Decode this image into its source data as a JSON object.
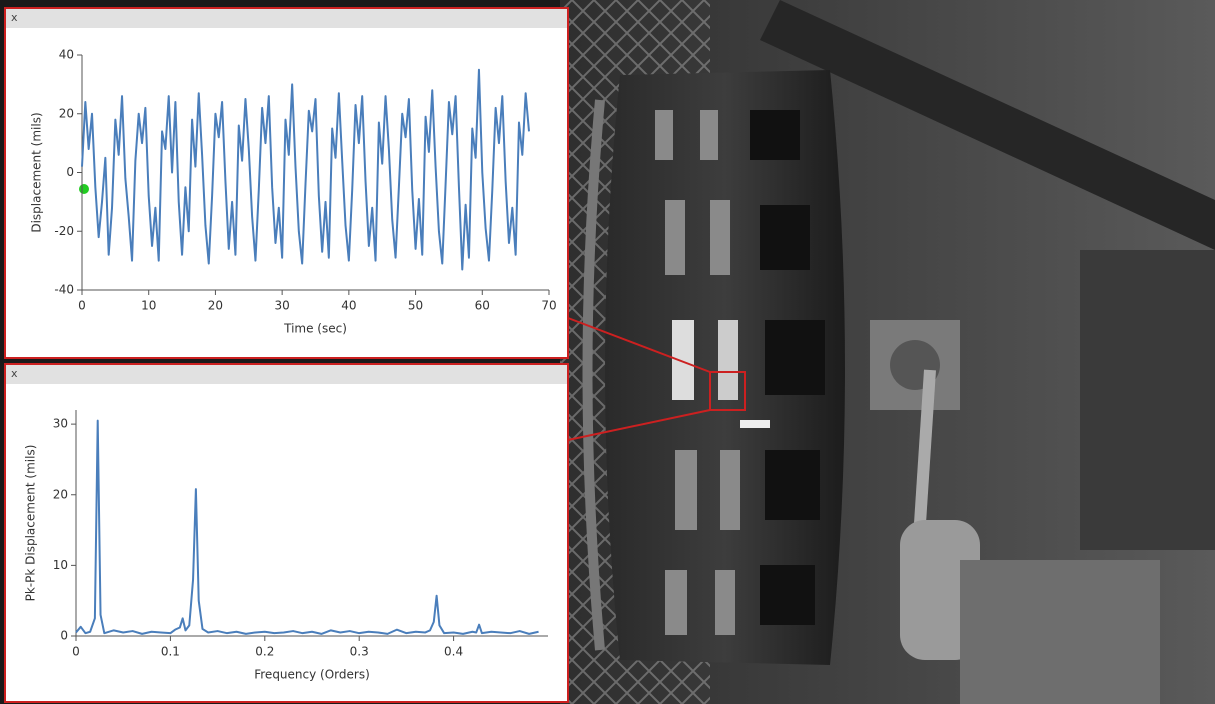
{
  "panels": [
    {
      "close": "x"
    },
    {
      "close": "x"
    }
  ],
  "chart_data": [
    {
      "type": "line",
      "xlabel": "Time (sec)",
      "ylabel": "Displacement (mils)",
      "color": "#4a7ebb",
      "x": [
        0,
        0.5,
        1,
        1.5,
        2,
        2.5,
        3,
        3.5,
        4,
        4.5,
        5,
        5.5,
        6,
        6.5,
        7,
        7.5,
        8,
        8.5,
        9,
        9.5,
        10,
        10.5,
        11,
        11.5,
        12,
        12.5,
        13,
        13.5,
        14,
        14.5,
        15,
        15.5,
        16,
        16.5,
        17,
        17.5,
        18,
        18.5,
        19,
        19.5,
        20,
        20.5,
        21,
        21.5,
        22,
        22.5,
        23,
        23.5,
        24,
        24.5,
        25,
        25.5,
        26,
        26.5,
        27,
        27.5,
        28,
        28.5,
        29,
        29.5,
        30,
        30.5,
        31,
        31.5,
        32,
        32.5,
        33,
        33.5,
        34,
        34.5,
        35,
        35.5,
        36,
        36.5,
        37,
        37.5,
        38,
        38.5,
        39,
        39.5,
        40,
        40.5,
        41,
        41.5,
        42,
        42.5,
        43,
        43.5,
        44,
        44.5,
        45,
        45.5,
        46,
        46.5,
        47,
        47.5,
        48,
        48.5,
        49,
        49.5,
        50,
        50.5,
        51,
        51.5,
        52,
        52.5,
        53,
        53.5,
        54,
        54.5,
        55,
        55.5,
        56,
        56.5,
        57,
        57.5,
        58,
        58.5,
        59,
        59.5,
        60,
        60.5,
        61,
        61.5,
        62,
        62.5,
        63,
        63.5,
        64,
        64.5,
        65,
        65.5,
        66,
        66.5,
        67
      ],
      "values": [
        2,
        24,
        8,
        20,
        -5,
        -22,
        -10,
        5,
        -28,
        -12,
        18,
        6,
        26,
        -2,
        -15,
        -30,
        4,
        20,
        10,
        22,
        -8,
        -25,
        -12,
        -30,
        14,
        8,
        26,
        0,
        24,
        -10,
        -28,
        -5,
        -20,
        18,
        2,
        27,
        6,
        -18,
        -31,
        -8,
        20,
        12,
        24,
        -3,
        -26,
        -10,
        -28,
        16,
        4,
        25,
        8,
        -15,
        -30,
        -6,
        22,
        10,
        26,
        -5,
        -24,
        -12,
        -29,
        18,
        6,
        30,
        2,
        -20,
        -31,
        -4,
        21,
        14,
        25,
        -8,
        -27,
        -10,
        -29,
        15,
        5,
        27,
        4,
        -18,
        -30,
        -6,
        23,
        10,
        26,
        -3,
        -25,
        -12,
        -30,
        17,
        3,
        26,
        8,
        -16,
        -29,
        -5,
        20,
        12,
        25,
        -6,
        -26,
        -9,
        -28,
        19,
        7,
        28,
        2,
        -20,
        -31,
        -4,
        24,
        13,
        26,
        -5,
        -33,
        -11,
        -29,
        15,
        5,
        35,
        0,
        -19,
        -30,
        -6,
        22,
        10,
        26,
        -3,
        -24,
        -12,
        -28,
        17,
        6,
        27,
        14
      ],
      "xlim": [
        0,
        70
      ],
      "xticks": [
        0,
        10,
        20,
        30,
        40,
        50,
        60,
        70
      ],
      "ylim": [
        -40,
        40
      ],
      "yticks": [
        -40,
        -20,
        0,
        20,
        40
      ]
    },
    {
      "type": "line",
      "xlabel": "Frequency (Orders)",
      "ylabel": "Pk-Pk Displacement (mils)",
      "color": "#4a7ebb",
      "x": [
        0,
        0.005,
        0.01,
        0.015,
        0.02,
        0.023,
        0.026,
        0.03,
        0.04,
        0.05,
        0.06,
        0.07,
        0.08,
        0.09,
        0.1,
        0.105,
        0.11,
        0.113,
        0.116,
        0.12,
        0.124,
        0.127,
        0.13,
        0.134,
        0.14,
        0.15,
        0.16,
        0.17,
        0.18,
        0.19,
        0.2,
        0.21,
        0.22,
        0.23,
        0.24,
        0.25,
        0.26,
        0.27,
        0.28,
        0.29,
        0.3,
        0.31,
        0.32,
        0.33,
        0.34,
        0.35,
        0.36,
        0.37,
        0.375,
        0.379,
        0.382,
        0.385,
        0.39,
        0.4,
        0.41,
        0.42,
        0.424,
        0.427,
        0.43,
        0.44,
        0.45,
        0.46,
        0.47,
        0.48,
        0.49
      ],
      "values": [
        0.5,
        1.3,
        0.4,
        0.6,
        2.5,
        30.5,
        3,
        0.4,
        0.8,
        0.5,
        0.7,
        0.3,
        0.6,
        0.5,
        0.4,
        0.9,
        1.2,
        2.5,
        0.8,
        1.5,
        8,
        20.8,
        5,
        1,
        0.5,
        0.7,
        0.4,
        0.6,
        0.3,
        0.5,
        0.6,
        0.4,
        0.5,
        0.7,
        0.4,
        0.6,
        0.3,
        0.8,
        0.5,
        0.7,
        0.4,
        0.6,
        0.5,
        0.3,
        0.9,
        0.4,
        0.6,
        0.5,
        0.8,
        2,
        5.7,
        1.5,
        0.4,
        0.5,
        0.3,
        0.6,
        0.5,
        1.6,
        0.4,
        0.6,
        0.5,
        0.4,
        0.7,
        0.3,
        0.6
      ],
      "xlim": [
        0,
        0.5
      ],
      "xticks": [
        0,
        0.1,
        0.2,
        0.3,
        0.4
      ],
      "ylim": [
        0,
        32
      ],
      "yticks": [
        0,
        10,
        20,
        30
      ]
    }
  ]
}
